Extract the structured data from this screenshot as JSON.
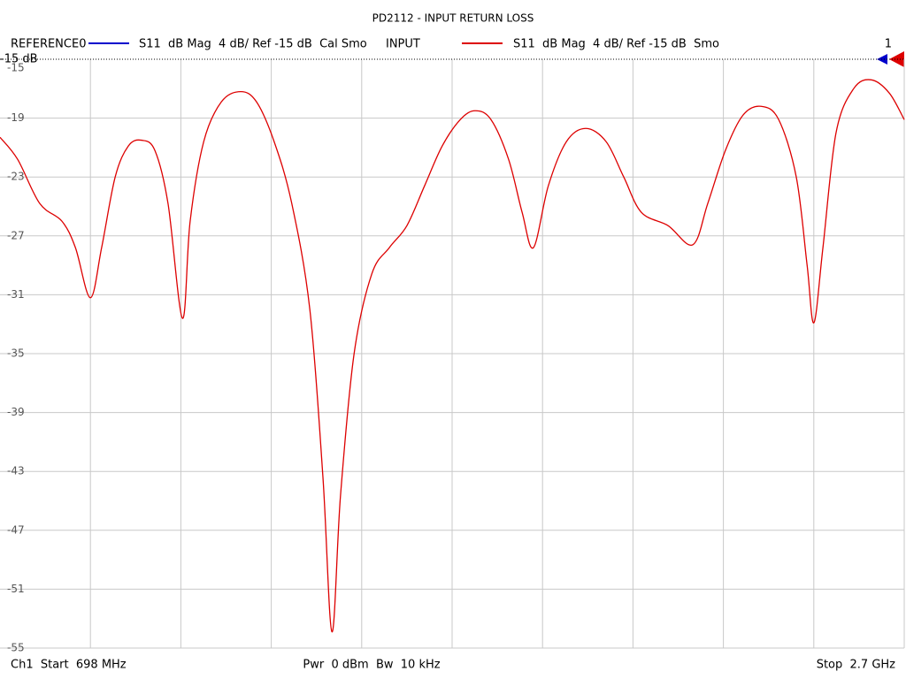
{
  "chart_data": {
    "type": "line",
    "title": "PD2112 - INPUT RETURN LOSS",
    "reference": {
      "name": "REFERENCE0",
      "description": "S11  dB Mag  4 dB/ Ref -15 dB  Cal Smo",
      "color": "#0000cc"
    },
    "series": [
      {
        "name": "INPUT",
        "description": "S11  dB Mag  4 dB/ Ref -15 dB  Smo",
        "color": "#dd0000",
        "values": [
          -20.3,
          -21.8,
          -24.8,
          -26.0,
          -27.8,
          -31.2,
          -27.8,
          -23.0,
          -20.9,
          -20.5,
          -21.2,
          -24.8,
          -32.6,
          -26.0,
          -20.6,
          -17.9,
          -17.2,
          -17.9,
          -20.6,
          -24.8,
          -32.0,
          -43.4,
          -53.9,
          -44.6,
          -35.0,
          -29.6,
          -27.8,
          -26.3,
          -23.6,
          -20.9,
          -19.1,
          -18.5,
          -19.1,
          -21.8,
          -25.4,
          -27.8,
          -23.6,
          -20.6,
          -19.7,
          -20.6,
          -23.0,
          -25.4,
          -26.3,
          -27.6,
          -24.8,
          -21.2,
          -18.8,
          -18.2,
          -19.1,
          -23.0,
          -29.0,
          -32.9,
          -27.8,
          -20.0,
          -17.0,
          -16.4,
          -17.3,
          -19.1
        ]
      }
    ],
    "x": [
      698,
      737,
      786,
      835,
      865,
      898,
      923,
      953,
      982,
      1011,
      1041,
      1070,
      1102,
      1119,
      1149,
      1188,
      1231,
      1266,
      1305,
      1344,
      1384,
      1413,
      1433,
      1452,
      1482,
      1521,
      1560,
      1599,
      1638,
      1677,
      1717,
      1750,
      1785,
      1824,
      1854,
      1879,
      1912,
      1952,
      1995,
      2040,
      2079,
      2118,
      2177,
      2232,
      2265,
      2304,
      2343,
      2383,
      2422,
      2461,
      2485,
      2500,
      2520,
      2549,
      2588,
      2627,
      2667,
      2700
    ],
    "xlim": [
      698,
      2700
    ],
    "ylim": [
      -55,
      -15
    ],
    "yticks": [
      -15,
      -19,
      -23,
      -27,
      -31,
      -35,
      -39,
      -43,
      -47,
      -51,
      -55
    ],
    "grid": true,
    "ref_label": "-15 dB",
    "marker_label": "1",
    "footer": {
      "start": "Ch1  Start  698 MHz",
      "power": "Pwr  0 dBm  Bw  10 kHz",
      "stop": "Stop  2.7 GHz"
    }
  }
}
